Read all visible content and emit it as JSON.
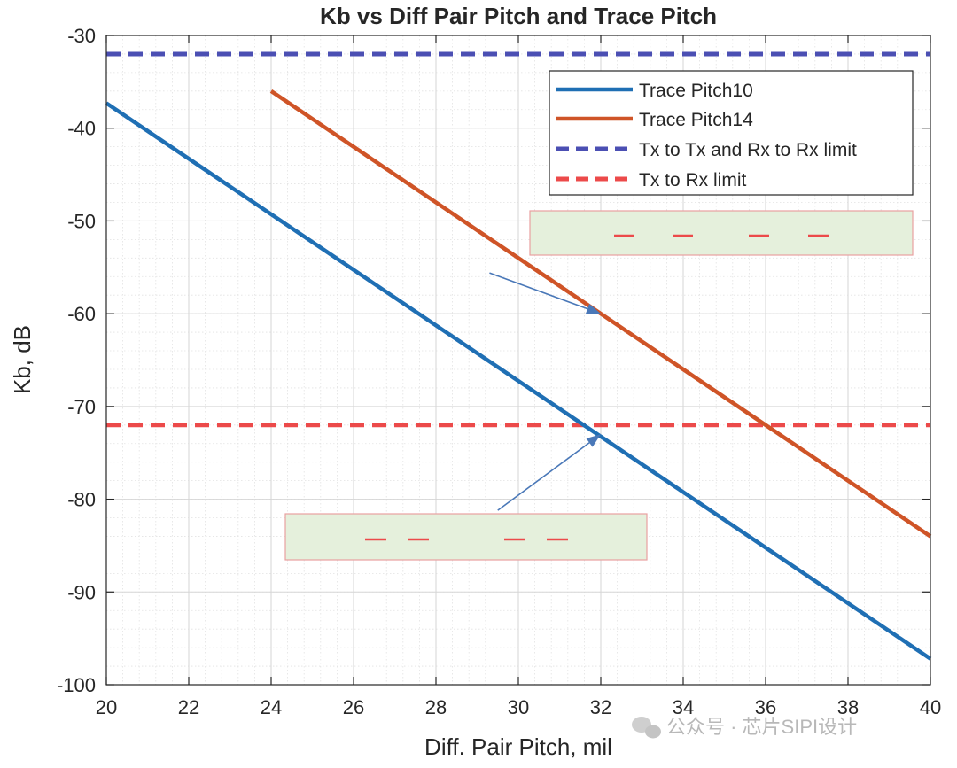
{
  "chart_data": {
    "type": "line",
    "title": "Kb vs Diff Pair Pitch and Trace Pitch",
    "xlabel": "Diff. Pair Pitch, mil",
    "ylabel": "Kb, dB",
    "xlim": [
      20,
      40
    ],
    "ylim": [
      -100,
      -30
    ],
    "xticks": [
      20,
      22,
      24,
      26,
      28,
      30,
      32,
      34,
      36,
      38,
      40
    ],
    "yticks": [
      -30,
      -40,
      -50,
      -60,
      -70,
      -80,
      -90,
      -100
    ],
    "grid": true,
    "minor_grid": true,
    "legend_position": "top-right",
    "series": [
      {
        "name": "Trace Pitch10",
        "style": "solid",
        "color": "#1f6fb4",
        "x": [
          20,
          40
        ],
        "y": [
          -37.3,
          -97.2
        ]
      },
      {
        "name": "Trace Pitch14",
        "style": "solid",
        "color": "#cf5427",
        "x": [
          24,
          40
        ],
        "y": [
          -36.0,
          -84.0
        ]
      },
      {
        "name": "Tx to Tx and Rx to Rx limit",
        "style": "dashed",
        "color": "#4b4fb3",
        "x": [
          20,
          40
        ],
        "y": [
          -32,
          -32
        ]
      },
      {
        "name": "Tx to Rx limit",
        "style": "dashed",
        "color": "#ec4a4a",
        "x": [
          20,
          40
        ],
        "y": [
          -72,
          -72
        ]
      }
    ],
    "annotations": [
      {
        "kind": "arrow",
        "from": [
          29.3,
          -55.6
        ],
        "to": [
          32.0,
          -60.0
        ]
      },
      {
        "kind": "arrow",
        "from": [
          29.5,
          -81.2
        ],
        "to": [
          32.0,
          -73.0
        ]
      }
    ]
  },
  "watermark": {
    "text": "公众号 · 芯片SIPI设计",
    "icon": "wechat-icon"
  },
  "colors": {
    "box_fill": "#e5f0dc",
    "box_border": "#e8a0a0",
    "box_dash": "#ec4a4a",
    "arrow": "#4a78b8"
  }
}
